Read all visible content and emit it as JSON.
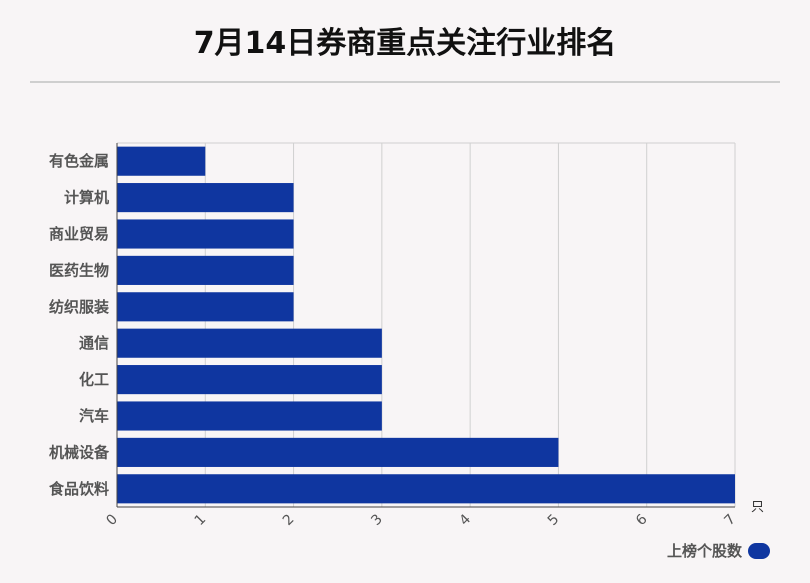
{
  "title": "7月14日券商重点关注行业排名",
  "colors": {
    "bar": "#0f36a0",
    "background": "#f8f5f6",
    "grid": "#d0d0d0"
  },
  "chart_data": {
    "type": "bar",
    "orientation": "horizontal",
    "title": "7月14日券商重点关注行业排名",
    "categories": [
      "有色金属",
      "计算机",
      "商业贸易",
      "医药生物",
      "纺织服装",
      "通信",
      "化工",
      "汽车",
      "机械设备",
      "食品饮料"
    ],
    "series": [
      {
        "name": "上榜个股数",
        "values": [
          1,
          2,
          2,
          2,
          2,
          3,
          3,
          3,
          5,
          7
        ]
      }
    ],
    "xlim": [
      0,
      7
    ],
    "x_ticks": [
      "0",
      "1",
      "2",
      "3",
      "4",
      "5",
      "6",
      "7"
    ],
    "x_unit": "只",
    "grid": true,
    "legend_position": "bottom-right"
  }
}
